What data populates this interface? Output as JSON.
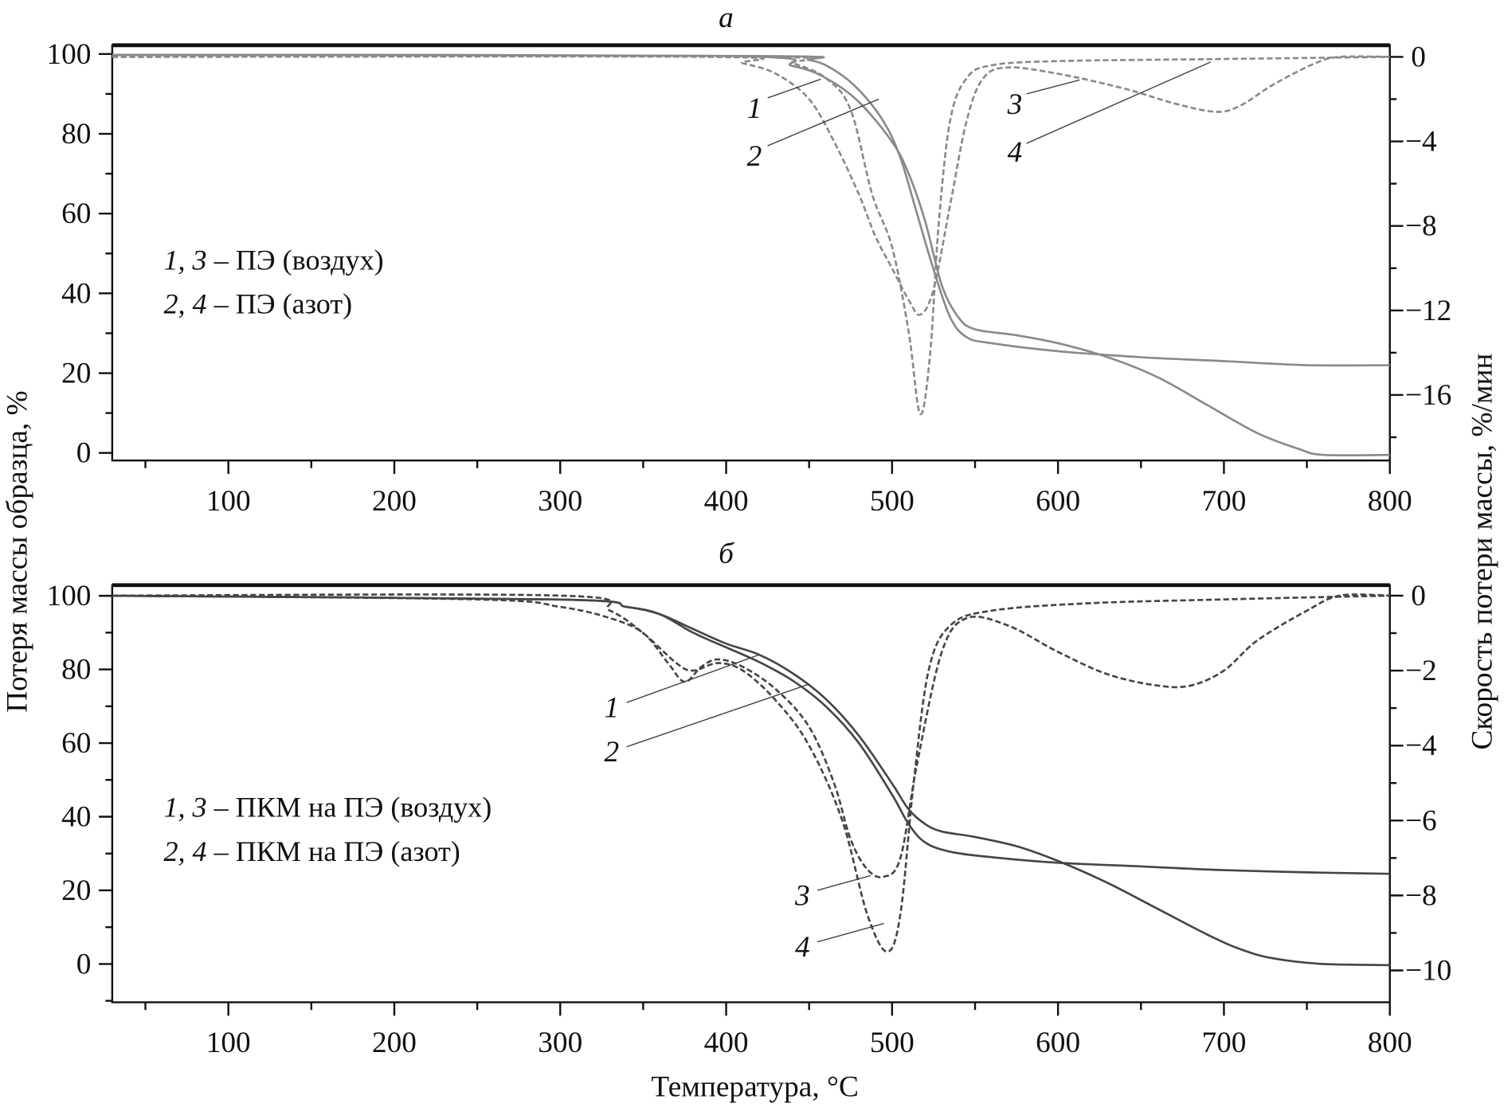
{
  "y_left_label": "Потеря массы образца, %",
  "y_right_label": "Скорость потери массы, %/мин",
  "x_label": "Температура, °C",
  "chart_data": [
    {
      "type": "line",
      "title": "а",
      "xlim": [
        30,
        800
      ],
      "x_ticks": [
        100,
        200,
        300,
        400,
        500,
        600,
        700,
        800
      ],
      "x_minor_step": 50,
      "ylim_left": [
        -1.9,
        102.2
      ],
      "y_left_ticks": [
        0,
        20,
        40,
        60,
        80,
        100
      ],
      "y_left_minor_step": 10,
      "ylim_right": [
        -19.1,
        0.55
      ],
      "y_right_ticks": [
        0,
        -4,
        -8,
        -12,
        -16
      ],
      "y_right_minor_step": 2,
      "color": "#8a8a8a",
      "legend": [
        {
          "nums": "1, 3",
          "text": " – ПЭ (воздух)",
          "pos": [
            61,
            46
          ]
        },
        {
          "nums": "2, 4",
          "text": " – ПЭ (азот)",
          "pos": [
            61,
            35
          ]
        }
      ],
      "series": [
        {
          "label": "1",
          "axis": "left",
          "style": "solid",
          "x": [
            30,
            400,
            440,
            460,
            480,
            500,
            510,
            520,
            530,
            540,
            550,
            575,
            600,
            630,
            660,
            690,
            720,
            745,
            760,
            800
          ],
          "y": [
            99.8,
            99.5,
            97,
            94,
            88,
            78,
            70,
            58,
            42,
            34,
            31,
            29.5,
            27.5,
            24,
            19,
            12,
            5,
            1,
            -0.5,
            -0.5
          ]
        },
        {
          "label": "2",
          "axis": "left",
          "style": "solid",
          "x": [
            30,
            420,
            450,
            465,
            480,
            495,
            505,
            515,
            525,
            535,
            545,
            560,
            600,
            650,
            700,
            750,
            800
          ],
          "y": [
            99.7,
            99.5,
            98.5,
            96,
            91,
            83,
            74,
            60,
            46,
            34,
            29,
            27.5,
            25.5,
            24,
            23,
            22,
            22
          ]
        },
        {
          "label": "3",
          "axis": "right",
          "style": "dashed",
          "x": [
            30,
            390,
            410,
            430,
            450,
            465,
            480,
            490,
            500,
            510,
            517,
            525,
            535,
            545,
            555,
            570,
            600,
            640,
            670,
            695,
            710,
            730,
            755,
            770,
            800
          ],
          "y": [
            0,
            0,
            -0.3,
            -0.8,
            -2,
            -4,
            -6.5,
            -8.5,
            -10,
            -11.5,
            -12.2,
            -11,
            -7,
            -3,
            -1,
            -0.5,
            -0.8,
            -1.5,
            -2.2,
            -2.6,
            -2.3,
            -1.3,
            -0.3,
            0,
            0
          ]
        },
        {
          "label": "4",
          "axis": "right",
          "style": "dashed",
          "x": [
            30,
            420,
            440,
            460,
            475,
            488,
            500,
            510,
            517,
            523,
            528,
            535,
            545,
            560,
            600,
            700,
            800
          ],
          "y": [
            0,
            0,
            -0.3,
            -1,
            -2.5,
            -6.5,
            -9,
            -13,
            -16.9,
            -14,
            -8,
            -3,
            -1,
            -0.4,
            -0.2,
            -0.1,
            0
          ]
        }
      ],
      "annotations": [
        {
          "text": "1",
          "pos": [
            417,
            84
          ],
          "from": [
            425,
            89
          ],
          "to": [
            457,
            93.7
          ]
        },
        {
          "text": "2",
          "pos": [
            417,
            72
          ],
          "from": [
            425,
            77
          ],
          "to": [
            492,
            88.7
          ]
        },
        {
          "text": "3",
          "pos": [
            574,
            85
          ],
          "from": [
            581,
            90
          ],
          "to": [
            613,
            93.5
          ]
        },
        {
          "text": "4",
          "pos": [
            574,
            73
          ],
          "from": [
            581,
            77.6
          ],
          "to": [
            692,
            98
          ]
        }
      ]
    },
    {
      "type": "line",
      "title": "б",
      "xlim": [
        30,
        800
      ],
      "x_ticks": [
        100,
        200,
        300,
        400,
        500,
        600,
        700,
        800
      ],
      "x_minor_step": 50,
      "ylim_left": [
        -10.4,
        102.9
      ],
      "y_left_ticks": [
        0,
        20,
        40,
        60,
        80,
        100
      ],
      "y_left_minor_step": 10,
      "ylim_right": [
        -10.85,
        0.28
      ],
      "y_right_ticks": [
        0,
        -2,
        -4,
        -6,
        -8,
        -10
      ],
      "y_right_minor_step": 1,
      "color": "#454545",
      "legend": [
        {
          "nums": "1, 3",
          "text": " – ПКМ на ПЭ (воздух)",
          "pos": [
            61,
            40
          ]
        },
        {
          "nums": "2, 4",
          "text": " – ПКМ на ПЭ (азот)",
          "pos": [
            61,
            28
          ]
        }
      ],
      "series": [
        {
          "label": "1",
          "axis": "left",
          "style": "solid",
          "x": [
            30,
            300,
            340,
            360,
            380,
            400,
            420,
            440,
            460,
            480,
            500,
            510,
            520,
            530,
            550,
            575,
            600,
            630,
            660,
            690,
            710,
            730,
            760,
            800
          ],
          "y": [
            100,
            99,
            97,
            95,
            91,
            87,
            84,
            79,
            72,
            62,
            49,
            42,
            38,
            36,
            34.5,
            32,
            28,
            22,
            15,
            8,
            4,
            1.5,
            0,
            -0.3
          ]
        },
        {
          "label": "2",
          "axis": "left",
          "style": "solid",
          "x": [
            30,
            300,
            340,
            360,
            380,
            400,
            420,
            440,
            460,
            480,
            500,
            510,
            520,
            535,
            560,
            600,
            650,
            700,
            760,
            800
          ],
          "y": [
            100,
            99,
            97,
            95,
            90,
            86,
            82,
            77,
            70,
            60,
            46,
            38,
            33,
            30.5,
            29,
            27.5,
            26.5,
            25.5,
            24.8,
            24.5
          ]
        },
        {
          "label": "3",
          "axis": "right",
          "style": "dashed",
          "x": [
            30,
            250,
            300,
            330,
            350,
            365,
            375,
            385,
            395,
            410,
            430,
            450,
            465,
            475,
            485,
            495,
            505,
            515,
            530,
            545,
            570,
            600,
            630,
            660,
            680,
            700,
            720,
            750,
            770,
            800
          ],
          "y": [
            0,
            -0.1,
            -0.3,
            -0.6,
            -1,
            -1.8,
            -2.3,
            -1.9,
            -1.7,
            -1.9,
            -2.5,
            -3.5,
            -5,
            -6.5,
            -7.3,
            -7.5,
            -7.0,
            -4.5,
            -1.5,
            -0.6,
            -0.8,
            -1.5,
            -2.1,
            -2.4,
            -2.4,
            -2.0,
            -1.2,
            -0.4,
            0,
            0
          ]
        },
        {
          "label": "4",
          "axis": "right",
          "style": "dashed",
          "x": [
            30,
            300,
            330,
            350,
            370,
            380,
            395,
            410,
            430,
            450,
            470,
            485,
            497,
            505,
            513,
            522,
            535,
            560,
            620,
            700,
            800
          ],
          "y": [
            0,
            0,
            -0.4,
            -1,
            -1.8,
            -2.0,
            -1.8,
            -2,
            -2.8,
            -4,
            -6,
            -8.5,
            -9.5,
            -8.5,
            -5,
            -2,
            -0.8,
            -0.4,
            -0.2,
            -0.1,
            0
          ]
        }
      ],
      "annotations": [
        {
          "text": "1",
          "pos": [
            331,
            67
          ],
          "from": [
            340,
            71
          ],
          "to": [
            420,
            84
          ]
        },
        {
          "text": "2",
          "pos": [
            331,
            55
          ],
          "from": [
            340,
            59
          ],
          "to": [
            450,
            76
          ]
        },
        {
          "text": "3",
          "pos": [
            446,
            16
          ],
          "from": [
            455,
            20
          ],
          "to": [
            487,
            24
          ]
        },
        {
          "text": "4",
          "pos": [
            446,
            2
          ],
          "from": [
            455,
            6
          ],
          "to": [
            495,
            11
          ]
        }
      ]
    }
  ]
}
